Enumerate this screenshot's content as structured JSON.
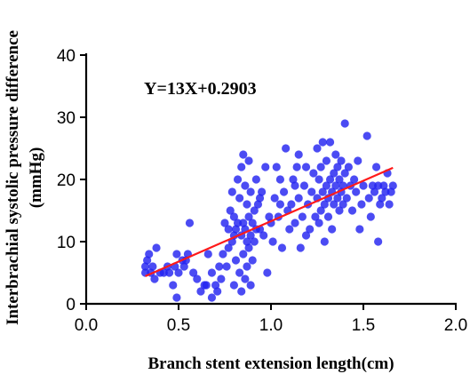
{
  "chart_data": {
    "type": "scatter",
    "xlabel": "Branch stent extension length(cm)",
    "ylabel": "Interbrachial systolic pressure difference (mmHg)",
    "ylabel_lines": [
      "Interbrachial systolic pressure difference",
      "(mmHg)"
    ],
    "xlim": [
      0.0,
      2.0
    ],
    "ylim": [
      0,
      40
    ],
    "x_ticks": [
      "0.0",
      "0.5",
      "1.0",
      "1.5",
      "2.0"
    ],
    "y_ticks": [
      "0",
      "10",
      "20",
      "30",
      "40"
    ],
    "grid": false,
    "annotation": "Y=13X+0.2903",
    "fit_line": {
      "slope": 13,
      "intercept": 0.2903,
      "x_range": [
        0.32,
        1.66
      ]
    },
    "colors": {
      "points": "#2323f0",
      "fit_line": "#ff1a1a",
      "axes": "#000000"
    },
    "points": [
      [
        0.32,
        5
      ],
      [
        0.32,
        6
      ],
      [
        0.33,
        7
      ],
      [
        0.34,
        8
      ],
      [
        0.35,
        5
      ],
      [
        0.36,
        6
      ],
      [
        0.37,
        4
      ],
      [
        0.38,
        9
      ],
      [
        0.4,
        5
      ],
      [
        0.42,
        5
      ],
      [
        0.44,
        6
      ],
      [
        0.45,
        5
      ],
      [
        0.47,
        3
      ],
      [
        0.48,
        6
      ],
      [
        0.49,
        1
      ],
      [
        0.49,
        8
      ],
      [
        0.5,
        5
      ],
      [
        0.52,
        7
      ],
      [
        0.53,
        6
      ],
      [
        0.54,
        7
      ],
      [
        0.55,
        8
      ],
      [
        0.56,
        13
      ],
      [
        0.58,
        5
      ],
      [
        0.6,
        4
      ],
      [
        0.62,
        2
      ],
      [
        0.64,
        3
      ],
      [
        0.65,
        3
      ],
      [
        0.66,
        8
      ],
      [
        0.68,
        1
      ],
      [
        0.68,
        5
      ],
      [
        0.7,
        3
      ],
      [
        0.71,
        2
      ],
      [
        0.72,
        6
      ],
      [
        0.73,
        4
      ],
      [
        0.74,
        8
      ],
      [
        0.75,
        13
      ],
      [
        0.76,
        6
      ],
      [
        0.77,
        9
      ],
      [
        0.77,
        12
      ],
      [
        0.78,
        15
      ],
      [
        0.79,
        10
      ],
      [
        0.79,
        18
      ],
      [
        0.8,
        11
      ],
      [
        0.8,
        3
      ],
      [
        0.8,
        14
      ],
      [
        0.81,
        12
      ],
      [
        0.81,
        7
      ],
      [
        0.82,
        20
      ],
      [
        0.82,
        13
      ],
      [
        0.83,
        5
      ],
      [
        0.83,
        17
      ],
      [
        0.84,
        11
      ],
      [
        0.84,
        2
      ],
      [
        0.84,
        22
      ],
      [
        0.85,
        24
      ],
      [
        0.85,
        13
      ],
      [
        0.85,
        8
      ],
      [
        0.86,
        12
      ],
      [
        0.86,
        4
      ],
      [
        0.86,
        19
      ],
      [
        0.87,
        10
      ],
      [
        0.87,
        16
      ],
      [
        0.87,
        6
      ],
      [
        0.88,
        14
      ],
      [
        0.88,
        9
      ],
      [
        0.88,
        23
      ],
      [
        0.89,
        11
      ],
      [
        0.89,
        3
      ],
      [
        0.89,
        18
      ],
      [
        0.9,
        13
      ],
      [
        0.9,
        7
      ],
      [
        0.91,
        15
      ],
      [
        0.91,
        10
      ],
      [
        0.92,
        20
      ],
      [
        0.92,
        12
      ],
      [
        0.93,
        16
      ],
      [
        0.94,
        12
      ],
      [
        0.95,
        18
      ],
      [
        0.96,
        11
      ],
      [
        0.97,
        22
      ],
      [
        0.98,
        5
      ],
      [
        0.99,
        14
      ],
      [
        1.0,
        13
      ],
      [
        1.01,
        10
      ],
      [
        1.02,
        17
      ],
      [
        1.03,
        22
      ],
      [
        1.04,
        14
      ],
      [
        1.05,
        20
      ],
      [
        1.06,
        9
      ],
      [
        1.07,
        18
      ],
      [
        1.08,
        25
      ],
      [
        1.09,
        15
      ],
      [
        1.1,
        12
      ],
      [
        1.11,
        16
      ],
      [
        1.12,
        20
      ],
      [
        1.13,
        13
      ],
      [
        1.14,
        22
      ],
      [
        1.15,
        17
      ],
      [
        1.16,
        9
      ],
      [
        1.17,
        14
      ],
      [
        1.18,
        19
      ],
      [
        1.19,
        11
      ],
      [
        1.19,
        22
      ],
      [
        1.2,
        16
      ],
      [
        1.21,
        12
      ],
      [
        1.22,
        18
      ],
      [
        1.23,
        21
      ],
      [
        1.24,
        14
      ],
      [
        1.25,
        17
      ],
      [
        1.25,
        25
      ],
      [
        1.26,
        13
      ],
      [
        1.26,
        20
      ],
      [
        1.27,
        15
      ],
      [
        1.27,
        22
      ],
      [
        1.28,
        18
      ],
      [
        1.28,
        26
      ],
      [
        1.29,
        16
      ],
      [
        1.29,
        10
      ],
      [
        1.3,
        19
      ],
      [
        1.3,
        23
      ],
      [
        1.31,
        17
      ],
      [
        1.31,
        14
      ],
      [
        1.32,
        20
      ],
      [
        1.32,
        26
      ],
      [
        1.33,
        18
      ],
      [
        1.33,
        12
      ],
      [
        1.34,
        21
      ],
      [
        1.34,
        16
      ],
      [
        1.35,
        19
      ],
      [
        1.35,
        24
      ],
      [
        1.36,
        17
      ],
      [
        1.36,
        22
      ],
      [
        1.37,
        15
      ],
      [
        1.37,
        20
      ],
      [
        1.38,
        18
      ],
      [
        1.38,
        23
      ],
      [
        1.39,
        16
      ],
      [
        1.39,
        19
      ],
      [
        1.4,
        29
      ],
      [
        1.4,
        21
      ],
      [
        1.41,
        17
      ],
      [
        1.42,
        22
      ],
      [
        1.43,
        19
      ],
      [
        1.44,
        15
      ],
      [
        1.45,
        20
      ],
      [
        1.46,
        18
      ],
      [
        1.47,
        23
      ],
      [
        1.48,
        12
      ],
      [
        1.49,
        16
      ],
      [
        1.5,
        19
      ],
      [
        1.52,
        27
      ],
      [
        1.53,
        17
      ],
      [
        1.54,
        14
      ],
      [
        1.55,
        19
      ],
      [
        1.56,
        18
      ],
      [
        1.57,
        22
      ],
      [
        1.58,
        10
      ],
      [
        1.58,
        19
      ],
      [
        1.59,
        16
      ],
      [
        1.6,
        17
      ],
      [
        1.61,
        19
      ],
      [
        1.62,
        18
      ],
      [
        1.63,
        21
      ],
      [
        1.64,
        16
      ],
      [
        1.65,
        18
      ],
      [
        1.66,
        19
      ],
      [
        1.13,
        19
      ],
      [
        1.15,
        24
      ],
      [
        0.94,
        17
      ],
      [
        1.05,
        16
      ]
    ]
  }
}
